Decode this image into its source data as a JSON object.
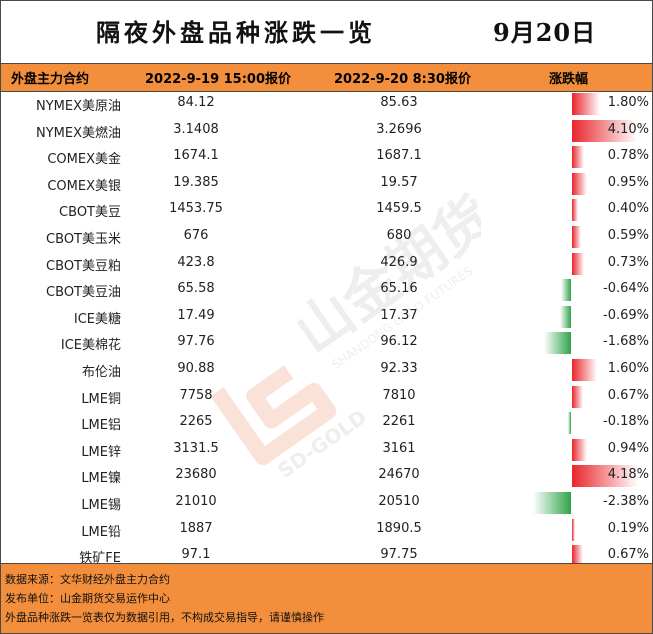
{
  "title": "隔夜外盘品种涨跌一览",
  "date": "9月20日",
  "headers": {
    "contract": "外盘主力合约",
    "prev": "2022-9-19 15:00报价",
    "curr": "2022-9-20 8:30报价",
    "change": "涨跌幅"
  },
  "colors": {
    "header_bg": "#f28e3c",
    "up": "#e8252b",
    "down": "#2fa34b"
  },
  "rows": [
    {
      "name": "NYMEX美原油",
      "prev": "84.12",
      "curr": "85.63",
      "pct_label": "1.80%",
      "pct": 1.8
    },
    {
      "name": "NYMEX美燃油",
      "prev": "3.1408",
      "curr": "3.2696",
      "pct_label": "4.10%",
      "pct": 4.1
    },
    {
      "name": "COMEX美金",
      "prev": "1674.1",
      "curr": "1687.1",
      "pct_label": "0.78%",
      "pct": 0.78
    },
    {
      "name": "COMEX美银",
      "prev": "19.385",
      "curr": "19.57",
      "pct_label": "0.95%",
      "pct": 0.95
    },
    {
      "name": "CBOT美豆",
      "prev": "1453.75",
      "curr": "1459.5",
      "pct_label": "0.40%",
      "pct": 0.4
    },
    {
      "name": "CBOT美玉米",
      "prev": "676",
      "curr": "680",
      "pct_label": "0.59%",
      "pct": 0.59
    },
    {
      "name": "CBOT美豆粕",
      "prev": "423.8",
      "curr": "426.9",
      "pct_label": "0.73%",
      "pct": 0.73
    },
    {
      "name": "CBOT美豆油",
      "prev": "65.58",
      "curr": "65.16",
      "pct_label": "-0.64%",
      "pct": -0.64
    },
    {
      "name": "ICE美糖",
      "prev": "17.49",
      "curr": "17.37",
      "pct_label": "-0.69%",
      "pct": -0.69
    },
    {
      "name": "ICE美棉花",
      "prev": "97.76",
      "curr": "96.12",
      "pct_label": "-1.68%",
      "pct": -1.68
    },
    {
      "name": "布伦油",
      "prev": "90.88",
      "curr": "92.33",
      "pct_label": "1.60%",
      "pct": 1.6
    },
    {
      "name": "LME铜",
      "prev": "7758",
      "curr": "7810",
      "pct_label": "0.67%",
      "pct": 0.67
    },
    {
      "name": "LME铝",
      "prev": "2265",
      "curr": "2261",
      "pct_label": "-0.18%",
      "pct": -0.18
    },
    {
      "name": "LME锌",
      "prev": "3131.5",
      "curr": "3161",
      "pct_label": "0.94%",
      "pct": 0.94
    },
    {
      "name": "LME镍",
      "prev": "23680",
      "curr": "24670",
      "pct_label": "4.18%",
      "pct": 4.18
    },
    {
      "name": "LME锡",
      "prev": "21010",
      "curr": "20510",
      "pct_label": "-2.38%",
      "pct": -2.38
    },
    {
      "name": "LME铅",
      "prev": "1887",
      "curr": "1890.5",
      "pct_label": "0.19%",
      "pct": 0.19
    },
    {
      "name": "铁矿FE",
      "prev": "97.1",
      "curr": "97.75",
      "pct_label": "0.67%",
      "pct": 0.67
    }
  ],
  "footer": {
    "source": "数据来源：文华财经外盘主力合约",
    "publisher": "发布单位：山金期货交易运作中心",
    "disclaimer": "外盘品种涨跌一览表仅为数据引用，不构成交易指导，请谨慎操作"
  },
  "watermark": {
    "brand": "山金期货",
    "sub_top": "SHANDONG GOLD FUTURES",
    "sub_bottom": "SD-GOLD"
  }
}
